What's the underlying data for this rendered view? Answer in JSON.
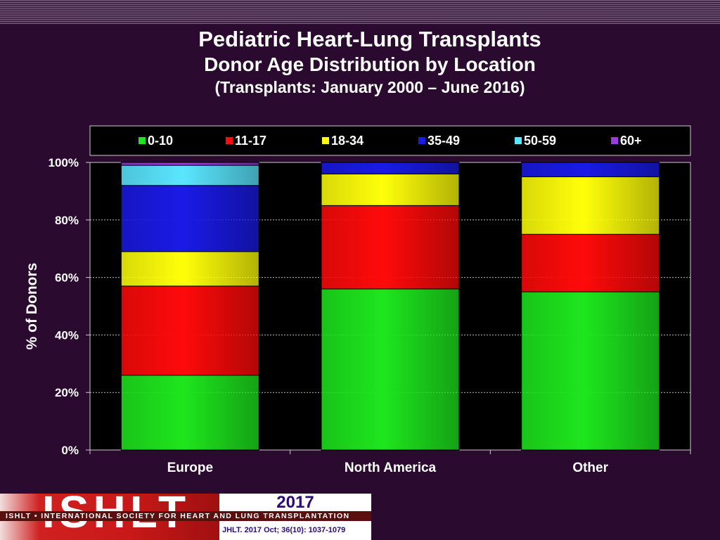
{
  "chart_data": {
    "type": "bar",
    "stacked": true,
    "title": "Pediatric Heart-Lung Transplants",
    "subtitle": "Donor Age Distribution by Location",
    "subtitle2": "(Transplants: January 2000 – June 2016)",
    "ylabel": "% of Donors",
    "xlabel": "",
    "ylim": [
      0,
      100
    ],
    "yticks": [
      "0%",
      "20%",
      "40%",
      "60%",
      "80%",
      "100%"
    ],
    "categories": [
      "Europe",
      "North America",
      "Other"
    ],
    "series": [
      {
        "name": "0-10",
        "color": "#1ee61e",
        "values": [
          26,
          56,
          55
        ]
      },
      {
        "name": "11-17",
        "color": "#ff0a0a",
        "values": [
          31,
          29,
          20
        ]
      },
      {
        "name": "18-34",
        "color": "#ffff0a",
        "values": [
          12,
          11,
          20
        ]
      },
      {
        "name": "35-49",
        "color": "#1a1ae6",
        "values": [
          23,
          4,
          5
        ]
      },
      {
        "name": "50-59",
        "color": "#5ae6ff",
        "values": [
          7,
          0,
          0
        ]
      },
      {
        "name": "60+",
        "color": "#9a3ae0",
        "values": [
          1,
          0,
          0
        ]
      }
    ],
    "legend_position": "top",
    "grid": true
  },
  "footer": {
    "logo_text": "ISHLT",
    "org_name": "ISHLT • INTERNATIONAL SOCIETY FOR HEART AND LUNG TRANSPLANTATION",
    "year": "2017",
    "citation": "JHLT. 2017 Oct; 36(10): 1037-1079"
  }
}
